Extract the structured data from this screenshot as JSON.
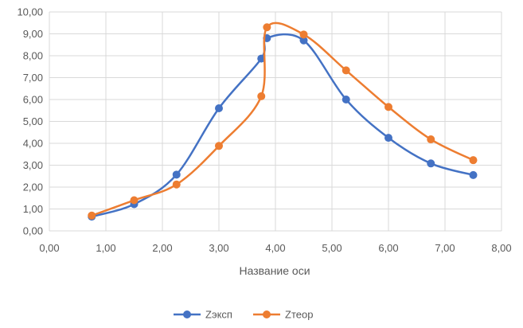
{
  "chart_data": {
    "type": "scatter",
    "title": "",
    "xlabel": "Название оси",
    "ylabel": "",
    "xlim": [
      0,
      8
    ],
    "ylim": [
      0,
      10
    ],
    "grid": true,
    "legend_position": "bottom",
    "x_tick_labels": [
      "0,00",
      "1,00",
      "2,00",
      "3,00",
      "4,00",
      "5,00",
      "6,00",
      "7,00",
      "8,00"
    ],
    "y_tick_labels": [
      "0,00",
      "1,00",
      "2,00",
      "3,00",
      "4,00",
      "5,00",
      "6,00",
      "7,00",
      "8,00",
      "9,00",
      "10,00"
    ],
    "series": [
      {
        "name": "Zэксп",
        "color": "#4472C4",
        "points": [
          [
            0.75,
            0.65
          ],
          [
            1.5,
            1.22
          ],
          [
            2.25,
            2.57
          ],
          [
            3.0,
            5.6
          ],
          [
            3.75,
            7.87
          ],
          [
            3.85,
            8.8
          ],
          [
            4.5,
            8.7
          ],
          [
            5.25,
            6.0
          ],
          [
            6.0,
            4.25
          ],
          [
            6.75,
            3.08
          ],
          [
            7.5,
            2.55
          ]
        ]
      },
      {
        "name": "Zтеор",
        "color": "#ED7D31",
        "points": [
          [
            0.75,
            0.7
          ],
          [
            1.5,
            1.4
          ],
          [
            2.25,
            2.12
          ],
          [
            3.0,
            3.88
          ],
          [
            3.75,
            6.15
          ],
          [
            3.85,
            9.3
          ],
          [
            4.5,
            8.97
          ],
          [
            5.25,
            7.33
          ],
          [
            6.0,
            5.66
          ],
          [
            6.75,
            4.18
          ],
          [
            7.5,
            3.23
          ]
        ]
      }
    ]
  }
}
